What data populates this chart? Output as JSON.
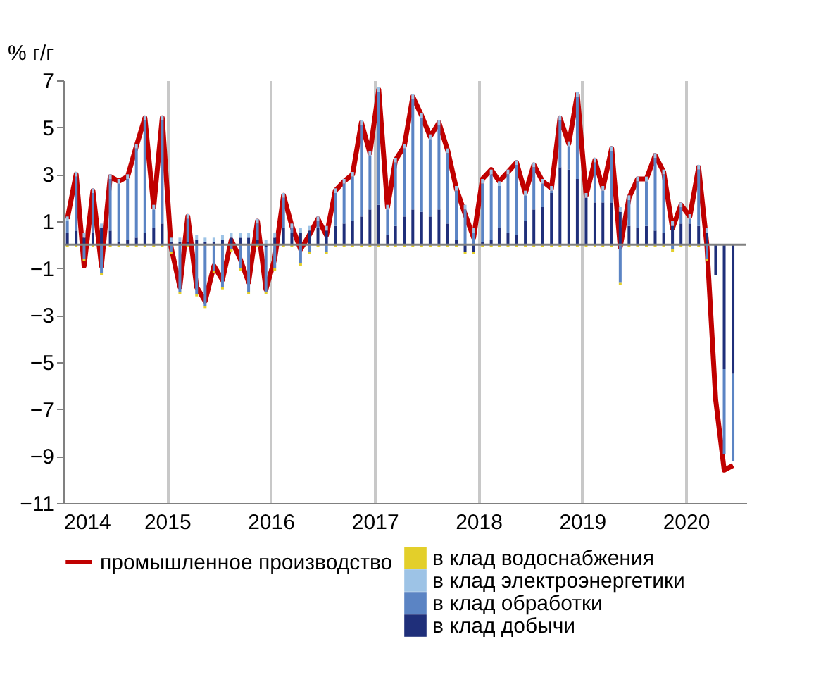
{
  "chart_data": {
    "type": "bar",
    "stacked": true,
    "ylabel": "% г/г",
    "x": [
      "2014-01-15",
      "2014-02-15",
      "2014-03-15",
      "2014-04-15",
      "2014-05-15",
      "2014-06-15",
      "2014-07-15",
      "2014-08-15",
      "2014-09-15",
      "2014-10-15",
      "2014-11-15",
      "2014-12-15",
      "2015-01-15",
      "2015-02-15",
      "2015-03-15",
      "2015-04-15",
      "2015-05-15",
      "2015-06-15",
      "2015-07-15",
      "2015-08-15",
      "2015-09-15",
      "2015-10-15",
      "2015-11-15",
      "2015-12-15",
      "2016-01-15",
      "2016-02-15",
      "2016-03-15",
      "2016-04-15",
      "2016-05-15",
      "2016-06-15",
      "2016-07-15",
      "2016-08-15",
      "2016-09-15",
      "2016-10-15",
      "2016-11-15",
      "2016-12-15",
      "2017-01-15",
      "2017-02-15",
      "2017-03-15",
      "2017-04-15",
      "2017-05-15",
      "2017-06-15",
      "2017-07-15",
      "2017-08-15",
      "2017-09-15",
      "2017-10-15",
      "2017-11-15",
      "2017-12-15",
      "2018-01-15",
      "2018-02-15",
      "2018-03-15",
      "2018-04-15",
      "2018-05-15",
      "2018-06-15",
      "2018-07-15",
      "2018-08-15",
      "2018-09-15",
      "2018-10-15",
      "2018-11-15",
      "2018-12-15",
      "2019-01-15",
      "2019-02-15",
      "2019-03-15",
      "2019-04-15",
      "2019-05-15",
      "2019-06-15",
      "2019-07-15",
      "2019-08-15",
      "2019-09-15",
      "2019-10-15",
      "2019-11-15",
      "2019-12-15",
      "2020-01-15",
      "2020-02-15",
      "2020-03-15",
      "2020-04-15",
      "2020-05-15",
      "2020-06-15"
    ],
    "series": [
      {
        "name": "в клад добычи",
        "color": "#1f2f7a",
        "values": [
          0.5,
          0.6,
          0.3,
          0.5,
          0.7,
          0.6,
          0.1,
          0.2,
          0.3,
          0.5,
          0.7,
          0.9,
          0.1,
          0.1,
          0.1,
          0.2,
          0.1,
          0.1,
          0.2,
          0.3,
          0.3,
          0.3,
          0.2,
          -0.1,
          0.3,
          0.7,
          0.5,
          0.5,
          0.6,
          0.7,
          0.6,
          0.8,
          0.9,
          1.0,
          1.2,
          1.5,
          1.7,
          0.4,
          0.8,
          1.2,
          1.5,
          1.4,
          1.2,
          1.5,
          0.9,
          0.2,
          -0.3,
          -0.3,
          0.1,
          0.2,
          0.7,
          0.5,
          0.4,
          1.0,
          1.5,
          1.6,
          2.2,
          3.3,
          3.2,
          2.8,
          2.0,
          1.8,
          1.8,
          1.8,
          1.4,
          0.8,
          0.7,
          0.8,
          0.6,
          0.5,
          0.8,
          0.9,
          0.9,
          0.8,
          0.5,
          -1.3,
          -5.3,
          -5.5
        ]
      },
      {
        "name": "в клад обработки",
        "color": "#5b84c4",
        "values": [
          0.5,
          2.3,
          -0.6,
          1.7,
          -1.2,
          2.2,
          2.5,
          2.6,
          3.8,
          4.8,
          0.8,
          4.4,
          -0.3,
          -2.0,
          1.0,
          -2.1,
          -2.6,
          -1.1,
          -1.8,
          -0.2,
          -1.0,
          -2.0,
          0.7,
          -1.9,
          -1.0,
          1.3,
          0.2,
          -0.8,
          -0.3,
          0.3,
          -0.3,
          1.4,
          1.7,
          1.9,
          3.9,
          2.3,
          4.8,
          1.1,
          2.7,
          2.9,
          4.7,
          4.0,
          3.3,
          3.6,
          3.0,
          2.1,
          1.5,
          0.5,
          2.5,
          2.8,
          1.8,
          2.5,
          3.0,
          1.1,
          1.8,
          1.0,
          0.1,
          2.0,
          1.0,
          3.5,
          0.0,
          1.7,
          0.5,
          2.2,
          -1.6,
          1.1,
          2.0,
          1.9,
          3.1,
          2.5,
          -0.2,
          0.7,
          0.2,
          2.4,
          -0.6,
          0,
          -3.6,
          -3.7
        ]
      },
      {
        "name": "в клад электроэнергетики",
        "color": "#9dc3e6",
        "values": [
          0.2,
          0.2,
          0.2,
          0.2,
          0.2,
          0.2,
          0.2,
          0.2,
          0.2,
          0.2,
          0.2,
          0.2,
          0.2,
          0.2,
          0.2,
          0.2,
          0.2,
          0.2,
          0.2,
          0.2,
          0.2,
          0.2,
          0.2,
          0.2,
          0.2,
          0.2,
          0.2,
          0.2,
          0.2,
          0.2,
          0.2,
          0.2,
          0.2,
          0.2,
          0.2,
          0.2,
          0.2,
          0.2,
          0.2,
          0.2,
          0.2,
          0.2,
          0.2,
          0.2,
          0.2,
          0.2,
          0.2,
          0.2,
          0.2,
          0.2,
          0.2,
          0.2,
          0.2,
          0.2,
          0.2,
          0.2,
          0.2,
          0.2,
          0.2,
          0.2,
          0.2,
          0.2,
          0.2,
          0.2,
          0.2,
          0.2,
          0.2,
          0.2,
          0.2,
          0.2,
          0.2,
          0.2,
          0.2,
          0.2,
          0.2,
          0,
          0,
          0
        ]
      },
      {
        "name": "в клад водоснабжения",
        "color": "#e3cf2a",
        "values": [
          -0.1,
          -0.1,
          -0.1,
          -0.1,
          -0.1,
          -0.1,
          -0.1,
          -0.1,
          -0.1,
          -0.1,
          -0.1,
          -0.1,
          -0.1,
          -0.1,
          -0.1,
          -0.1,
          -0.1,
          -0.1,
          -0.1,
          -0.1,
          -0.1,
          -0.1,
          -0.1,
          -0.1,
          -0.1,
          -0.1,
          -0.1,
          -0.1,
          -0.1,
          -0.1,
          -0.1,
          -0.1,
          -0.1,
          -0.1,
          -0.1,
          -0.1,
          -0.1,
          -0.1,
          -0.1,
          -0.1,
          -0.1,
          -0.1,
          -0.1,
          -0.1,
          -0.1,
          -0.1,
          -0.1,
          -0.1,
          -0.1,
          -0.1,
          -0.1,
          -0.1,
          -0.1,
          -0.1,
          -0.1,
          -0.1,
          -0.1,
          -0.1,
          -0.1,
          -0.1,
          -0.1,
          -0.1,
          -0.1,
          -0.1,
          -0.1,
          -0.1,
          -0.1,
          -0.1,
          -0.1,
          -0.1,
          -0.1,
          -0.1,
          -0.1,
          -0.1,
          -0.1,
          0,
          0,
          0
        ]
      },
      {
        "name": "промышленное производство",
        "type": "line",
        "color": "#c00000",
        "values": [
          1.1,
          3.0,
          -0.9,
          2.3,
          -0.9,
          2.9,
          2.7,
          2.9,
          4.2,
          5.4,
          1.6,
          5.4,
          -0.1,
          -1.8,
          1.2,
          -1.8,
          -2.4,
          -0.9,
          -1.5,
          0.2,
          -0.6,
          -1.6,
          1.0,
          -1.9,
          -0.6,
          2.1,
          0.8,
          -0.2,
          0.4,
          1.1,
          0.4,
          2.3,
          2.7,
          3.0,
          5.2,
          3.9,
          6.6,
          1.6,
          3.6,
          4.2,
          6.3,
          5.5,
          4.6,
          5.2,
          4.0,
          2.4,
          1.3,
          0.3,
          2.8,
          3.2,
          2.7,
          3.1,
          3.5,
          2.2,
          3.4,
          2.7,
          2.4,
          5.4,
          4.3,
          6.4,
          2.1,
          3.6,
          2.4,
          4.1,
          -0.1,
          2.0,
          2.8,
          2.8,
          3.8,
          3.1,
          0.7,
          1.7,
          1.2,
          3.3,
          0.0,
          -6.6,
          -9.6,
          -9.4
        ]
      }
    ],
    "xlim": [
      "2014-01-01",
      "2020-08-01"
    ],
    "xticks": [
      {
        "value": "2014-01-01",
        "label": "2014"
      },
      {
        "value": "2015-01-01",
        "label": "2015"
      },
      {
        "value": "2016-01-01",
        "label": "2016"
      },
      {
        "value": "2017-01-01",
        "label": "2017"
      },
      {
        "value": "2018-01-01",
        "label": "2018"
      },
      {
        "value": "2019-01-01",
        "label": "2019"
      },
      {
        "value": "2020-01-01",
        "label": "2020"
      }
    ],
    "ylim": [
      -11,
      7
    ],
    "yticks": [
      -11,
      -9,
      -7,
      -5,
      -3,
      -1,
      1,
      3,
      5,
      7
    ],
    "ref_lines": [
      {
        "axis": "y",
        "value": 0,
        "color": "#808080"
      }
    ],
    "grid": "x",
    "legend": "bottom"
  }
}
